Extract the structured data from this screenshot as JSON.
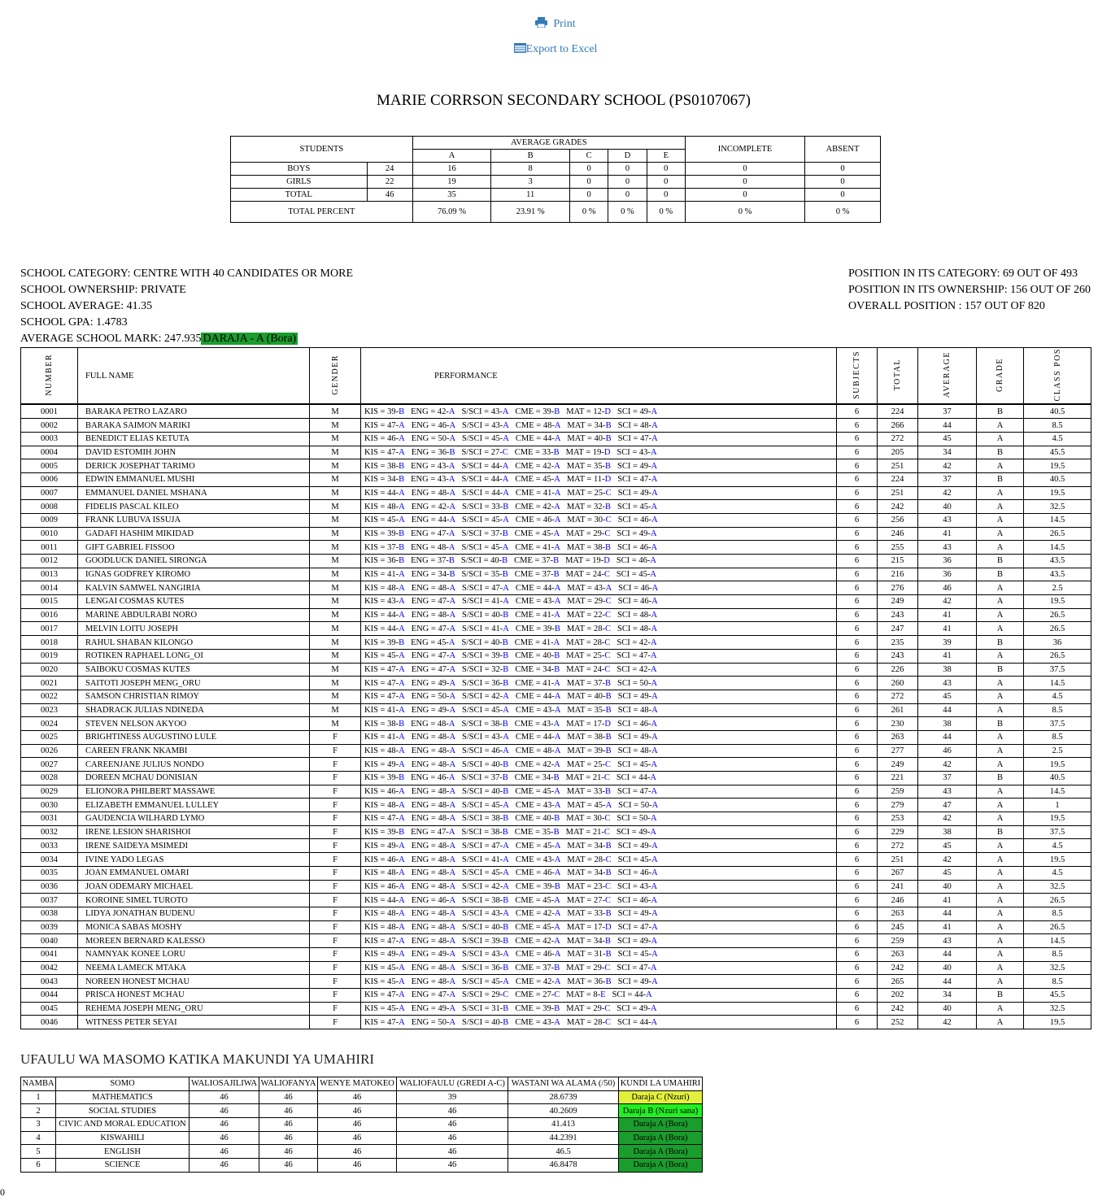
{
  "actions": {
    "print": "Print",
    "excel": "Export to Excel",
    "print_icon": "printer-icon",
    "excel_icon": "spreadsheet-icon",
    "link_color": "#337ab7"
  },
  "title": "MARIE CORRSON SECONDARY SCHOOL (PS0107067)",
  "summary": {
    "students_label": "STUDENTS",
    "average_grades_label": "AVERAGE GRADES",
    "grades": [
      "A",
      "B",
      "C",
      "D",
      "E"
    ],
    "incomplete_label": "INCOMPLETE",
    "absent_label": "ABSENT",
    "rows": [
      {
        "label": "BOYS",
        "count": "24",
        "grades": [
          "16",
          "8",
          "0",
          "0",
          "0"
        ],
        "incomplete": "0",
        "absent": "0"
      },
      {
        "label": "GIRLS",
        "count": "22",
        "grades": [
          "19",
          "3",
          "0",
          "0",
          "0"
        ],
        "incomplete": "0",
        "absent": "0"
      },
      {
        "label": "TOTAL",
        "count": "46",
        "grades": [
          "35",
          "11",
          "0",
          "0",
          "0"
        ],
        "incomplete": "0",
        "absent": "0"
      }
    ],
    "percent": {
      "label": "TOTAL PERCENT",
      "grades": [
        "76.09 %",
        "23.91 %",
        "0 %",
        "0 %",
        "0 %"
      ],
      "incomplete": "0 %",
      "absent": "0 %"
    }
  },
  "info": {
    "left": [
      "SCHOOL CATEGORY: CENTRE WITH 40 CANDIDATES OR MORE",
      "SCHOOL OWNERSHIP: PRIVATE",
      "SCHOOL AVERAGE: 41.35",
      "SCHOOL GPA: 1.4783"
    ],
    "avg_mark": "AVERAGE SCHOOL MARK: 247.935",
    "avg_daraja": "DARAJA - A (Bora)",
    "daraja_color": "#1a9d2d",
    "right": [
      "POSITION IN ITS CATEGORY: 69 OUT OF 493",
      "POSITION IN ITS OWNERSHIP: 156 OUT OF 260",
      "OVERALL POSITION : 157 OUT OF 820"
    ]
  },
  "results": {
    "headers": {
      "number": "NUMBER",
      "name": "FULL NAME",
      "gender": "GENDER",
      "performance": "PERFORMANCE",
      "subjects": "SUBJECTS",
      "total": "TOTAL",
      "average": "AVERAGE",
      "grade": "GRADE",
      "pos": "CLASS POS"
    },
    "subject_codes": [
      "KIS",
      "ENG",
      "S/SCI",
      "CME",
      "MAT",
      "SCI"
    ],
    "grade_color": "#0000ee",
    "rows": [
      [
        "0001",
        "BARAKA PETRO LAZARO",
        "M",
        [
          "39-B",
          "42-A",
          "43-A",
          "39-B",
          "12-D",
          "49-A"
        ],
        "6",
        "224",
        "37",
        "B",
        "40.5"
      ],
      [
        "0002",
        "BARAKA SAIMON MARIKI",
        "M",
        [
          "47-A",
          "46-A",
          "43-A",
          "48-A",
          "34-B",
          "48-A"
        ],
        "6",
        "266",
        "44",
        "A",
        "8.5"
      ],
      [
        "0003",
        "BENEDICT ELIAS KETUTA",
        "M",
        [
          "46-A",
          "50-A",
          "45-A",
          "44-A",
          "40-B",
          "47-A"
        ],
        "6",
        "272",
        "45",
        "A",
        "4.5"
      ],
      [
        "0004",
        "DAVID ESTOMIH JOHN",
        "M",
        [
          "47-A",
          "36-B",
          "27-C",
          "33-B",
          "19-D",
          "43-A"
        ],
        "6",
        "205",
        "34",
        "B",
        "45.5"
      ],
      [
        "0005",
        "DERICK JOSEPHAT TARIMO",
        "M",
        [
          "38-B",
          "43-A",
          "44-A",
          "42-A",
          "35-B",
          "49-A"
        ],
        "6",
        "251",
        "42",
        "A",
        "19.5"
      ],
      [
        "0006",
        "EDWIN EMMANUEL MUSHI",
        "M",
        [
          "34-B",
          "43-A",
          "44-A",
          "45-A",
          "11-D",
          "47-A"
        ],
        "6",
        "224",
        "37",
        "B",
        "40.5"
      ],
      [
        "0007",
        "EMMANUEL DANIEL MSHANA",
        "M",
        [
          "44-A",
          "48-A",
          "44-A",
          "41-A",
          "25-C",
          "49-A"
        ],
        "6",
        "251",
        "42",
        "A",
        "19.5"
      ],
      [
        "0008",
        "FIDELIS PASCAL KILEO",
        "M",
        [
          "48-A",
          "42-A",
          "33-B",
          "42-A",
          "32-B",
          "45-A"
        ],
        "6",
        "242",
        "40",
        "A",
        "32.5"
      ],
      [
        "0009",
        "FRANK LUBUVA ISSUJA",
        "M",
        [
          "45-A",
          "44-A",
          "45-A",
          "46-A",
          "30-C",
          "46-A"
        ],
        "6",
        "256",
        "43",
        "A",
        "14.5"
      ],
      [
        "0010",
        "GADAFI HASHIM MIKIDAD",
        "M",
        [
          "39-B",
          "47-A",
          "37-B",
          "45-A",
          "29-C",
          "49-A"
        ],
        "6",
        "246",
        "41",
        "A",
        "26.5"
      ],
      [
        "0011",
        "GIFT GABRIEL FISSOO",
        "M",
        [
          "37-B",
          "48-A",
          "45-A",
          "41-A",
          "38-B",
          "46-A"
        ],
        "6",
        "255",
        "43",
        "A",
        "14.5"
      ],
      [
        "0012",
        "GOODLUCK DANIEL SIRONGA",
        "M",
        [
          "36-B",
          "37-B",
          "40-B",
          "37-B",
          "19-D",
          "46-A"
        ],
        "6",
        "215",
        "36",
        "B",
        "43.5"
      ],
      [
        "0013",
        "IGNAS GODFREY KIROMO",
        "M",
        [
          "41-A",
          "34-B",
          "35-B",
          "37-B",
          "24-C",
          "45-A"
        ],
        "6",
        "216",
        "36",
        "B",
        "43.5"
      ],
      [
        "0014",
        "KALVIN SAMWEL NANGIRIA",
        "M",
        [
          "48-A",
          "48-A",
          "47-A",
          "44-A",
          "43-A",
          "46-A"
        ],
        "6",
        "276",
        "46",
        "A",
        "2.5"
      ],
      [
        "0015",
        "LENGAI COSMAS KUTES",
        "M",
        [
          "43-A",
          "47-A",
          "41-A",
          "43-A",
          "29-C",
          "46-A"
        ],
        "6",
        "249",
        "42",
        "A",
        "19.5"
      ],
      [
        "0016",
        "MARINE ABDULRABI NORO",
        "M",
        [
          "44-A",
          "48-A",
          "40-B",
          "41-A",
          "22-C",
          "48-A"
        ],
        "6",
        "243",
        "41",
        "A",
        "26.5"
      ],
      [
        "0017",
        "MELVIN LOITU JOSEPH",
        "M",
        [
          "44-A",
          "47-A",
          "41-A",
          "39-B",
          "28-C",
          "48-A"
        ],
        "6",
        "247",
        "41",
        "A",
        "26.5"
      ],
      [
        "0018",
        "RAHUL SHABAN KILONGO",
        "M",
        [
          "39-B",
          "45-A",
          "40-B",
          "41-A",
          "28-C",
          "42-A"
        ],
        "6",
        "235",
        "39",
        "B",
        "36"
      ],
      [
        "0019",
        "ROTIKEN RAPHAEL LONG_OI",
        "M",
        [
          "45-A",
          "47-A",
          "39-B",
          "40-B",
          "25-C",
          "47-A"
        ],
        "6",
        "243",
        "41",
        "A",
        "26.5"
      ],
      [
        "0020",
        "SAIBOKU COSMAS KUTES",
        "M",
        [
          "47-A",
          "47-A",
          "32-B",
          "34-B",
          "24-C",
          "42-A"
        ],
        "6",
        "226",
        "38",
        "B",
        "37.5"
      ],
      [
        "0021",
        "SAITOTI JOSEPH MENG_ORU",
        "M",
        [
          "47-A",
          "49-A",
          "36-B",
          "41-A",
          "37-B",
          "50-A"
        ],
        "6",
        "260",
        "43",
        "A",
        "14.5"
      ],
      [
        "0022",
        "SAMSON CHRISTIAN RIMOY",
        "M",
        [
          "47-A",
          "50-A",
          "42-A",
          "44-A",
          "40-B",
          "49-A"
        ],
        "6",
        "272",
        "45",
        "A",
        "4.5"
      ],
      [
        "0023",
        "SHADRACK JULIAS NDINEDA",
        "M",
        [
          "41-A",
          "49-A",
          "45-A",
          "43-A",
          "35-B",
          "48-A"
        ],
        "6",
        "261",
        "44",
        "A",
        "8.5"
      ],
      [
        "0024",
        "STEVEN NELSON AKYOO",
        "M",
        [
          "38-B",
          "48-A",
          "38-B",
          "43-A",
          "17-D",
          "46-A"
        ],
        "6",
        "230",
        "38",
        "B",
        "37.5"
      ],
      [
        "0025",
        "BRIGHTINESS AUGUSTINO LULE",
        "F",
        [
          "41-A",
          "48-A",
          "43-A",
          "44-A",
          "38-B",
          "49-A"
        ],
        "6",
        "263",
        "44",
        "A",
        "8.5"
      ],
      [
        "0026",
        "CAREEN FRANK NKAMBI",
        "F",
        [
          "48-A",
          "48-A",
          "46-A",
          "48-A",
          "39-B",
          "48-A"
        ],
        "6",
        "277",
        "46",
        "A",
        "2.5"
      ],
      [
        "0027",
        "CAREENJANE JULIUS NONDO",
        "F",
        [
          "49-A",
          "48-A",
          "40-B",
          "42-A",
          "25-C",
          "45-A"
        ],
        "6",
        "249",
        "42",
        "A",
        "19.5"
      ],
      [
        "0028",
        "DOREEN MCHAU DONISIAN",
        "F",
        [
          "39-B",
          "46-A",
          "37-B",
          "34-B",
          "21-C",
          "44-A"
        ],
        "6",
        "221",
        "37",
        "B",
        "40.5"
      ],
      [
        "0029",
        "ELIONORA PHILBERT MASSAWE",
        "F",
        [
          "46-A",
          "48-A",
          "40-B",
          "45-A",
          "33-B",
          "47-A"
        ],
        "6",
        "259",
        "43",
        "A",
        "14.5"
      ],
      [
        "0030",
        "ELIZABETH EMMANUEL LULLEY",
        "F",
        [
          "48-A",
          "48-A",
          "45-A",
          "43-A",
          "45-A",
          "50-A"
        ],
        "6",
        "279",
        "47",
        "A",
        "1"
      ],
      [
        "0031",
        "GAUDENCIA WILHARD LYMO",
        "F",
        [
          "47-A",
          "48-A",
          "38-B",
          "40-B",
          "30-C",
          "50-A"
        ],
        "6",
        "253",
        "42",
        "A",
        "19.5"
      ],
      [
        "0032",
        "IRENE LESION SHARISHOI",
        "F",
        [
          "39-B",
          "47-A",
          "38-B",
          "35-B",
          "21-C",
          "49-A"
        ],
        "6",
        "229",
        "38",
        "B",
        "37.5"
      ],
      [
        "0033",
        "IRENE SAIDEYA MSIMEDI",
        "F",
        [
          "49-A",
          "48-A",
          "47-A",
          "45-A",
          "34-B",
          "49-A"
        ],
        "6",
        "272",
        "45",
        "A",
        "4.5"
      ],
      [
        "0034",
        "IVINE YADO LEGAS",
        "F",
        [
          "46-A",
          "48-A",
          "41-A",
          "43-A",
          "28-C",
          "45-A"
        ],
        "6",
        "251",
        "42",
        "A",
        "19.5"
      ],
      [
        "0035",
        "JOAN EMMANUEL OMARI",
        "F",
        [
          "48-A",
          "48-A",
          "45-A",
          "46-A",
          "34-B",
          "46-A"
        ],
        "6",
        "267",
        "45",
        "A",
        "4.5"
      ],
      [
        "0036",
        "JOAN ODEMARY MICHAEL",
        "F",
        [
          "46-A",
          "48-A",
          "42-A",
          "39-B",
          "23-C",
          "43-A"
        ],
        "6",
        "241",
        "40",
        "A",
        "32.5"
      ],
      [
        "0037",
        "KOROINE SIMEL TUROTO",
        "F",
        [
          "44-A",
          "46-A",
          "38-B",
          "45-A",
          "27-C",
          "46-A"
        ],
        "6",
        "246",
        "41",
        "A",
        "26.5"
      ],
      [
        "0038",
        "LIDYA JONATHAN BUDENU",
        "F",
        [
          "48-A",
          "48-A",
          "43-A",
          "42-A",
          "33-B",
          "49-A"
        ],
        "6",
        "263",
        "44",
        "A",
        "8.5"
      ],
      [
        "0039",
        "MONICA SABAS MOSHY",
        "F",
        [
          "48-A",
          "48-A",
          "40-B",
          "45-A",
          "17-D",
          "47-A"
        ],
        "6",
        "245",
        "41",
        "A",
        "26.5"
      ],
      [
        "0040",
        "MOREEN BERNARD KALESSO",
        "F",
        [
          "47-A",
          "48-A",
          "39-B",
          "42-A",
          "34-B",
          "49-A"
        ],
        "6",
        "259",
        "43",
        "A",
        "14.5"
      ],
      [
        "0041",
        "NAMNYAK KONEE LORU",
        "F",
        [
          "49-A",
          "49-A",
          "43-A",
          "46-A",
          "31-B",
          "45-A"
        ],
        "6",
        "263",
        "44",
        "A",
        "8.5"
      ],
      [
        "0042",
        "NEEMA LAMECK MTAKA",
        "F",
        [
          "45-A",
          "48-A",
          "36-B",
          "37-B",
          "29-C",
          "47-A"
        ],
        "6",
        "242",
        "40",
        "A",
        "32.5"
      ],
      [
        "0043",
        "NOREEN HONEST MCHAU",
        "F",
        [
          "45-A",
          "48-A",
          "45-A",
          "42-A",
          "36-B",
          "49-A"
        ],
        "6",
        "265",
        "44",
        "A",
        "8.5"
      ],
      [
        "0044",
        "PRISCA HONEST MCHAU",
        "F",
        [
          "47-A",
          "47-A",
          "29-C",
          "27-C",
          "8-E",
          "44-A"
        ],
        "6",
        "202",
        "34",
        "B",
        "45.5"
      ],
      [
        "0045",
        "REHEMA JOSEPH MENG_ORU",
        "F",
        [
          "45-A",
          "49-A",
          "31-B",
          "39-B",
          "29-C",
          "49-A"
        ],
        "6",
        "242",
        "40",
        "A",
        "32.5"
      ],
      [
        "0046",
        "WITNESS PETER SEYAI",
        "F",
        [
          "47-A",
          "50-A",
          "40-B",
          "43-A",
          "28-C",
          "44-A"
        ],
        "6",
        "252",
        "42",
        "A",
        "19.5"
      ]
    ]
  },
  "subjects_section": {
    "title": "UFAULU WA MASOMO KATIKA MAKUNDI YA UMAHIRI",
    "headers": [
      "NAMBA",
      "SOMO",
      "WALIOSAJILIWA",
      "WALIOFANYA",
      "WENYE MATOKEO",
      "WALIOFAULU (GREDI A-C)",
      "WASTANI WA ALAMA (/50)",
      "KUNDI LA UMAHIRI"
    ],
    "rows": [
      {
        "cells": [
          "1",
          "MATHEMATICS",
          "46",
          "46",
          "46",
          "39",
          "28.6739",
          "Daraja C (Nzuri)"
        ],
        "color": "#e2f03c"
      },
      {
        "cells": [
          "2",
          "SOCIAL STUDIES",
          "46",
          "46",
          "46",
          "46",
          "40.2609",
          "Daraja B (Nzuri sana)"
        ],
        "color": "#22ee22"
      },
      {
        "cells": [
          "3",
          "CIVIC AND MORAL EDUCATION",
          "46",
          "46",
          "46",
          "46",
          "41.413",
          "Daraja A (Bora)"
        ],
        "color": "#1a9d2d"
      },
      {
        "cells": [
          "4",
          "KISWAHILI",
          "46",
          "46",
          "46",
          "46",
          "44.2391",
          "Daraja A (Bora)"
        ],
        "color": "#1a9d2d"
      },
      {
        "cells": [
          "5",
          "ENGLISH",
          "46",
          "46",
          "46",
          "46",
          "46.5",
          "Daraja A (Bora)"
        ],
        "color": "#1a9d2d"
      },
      {
        "cells": [
          "6",
          "SCIENCE",
          "46",
          "46",
          "46",
          "46",
          "46.8478",
          "Daraja A (Bora)"
        ],
        "color": "#1a9d2d"
      }
    ]
  },
  "footer_text": "0"
}
